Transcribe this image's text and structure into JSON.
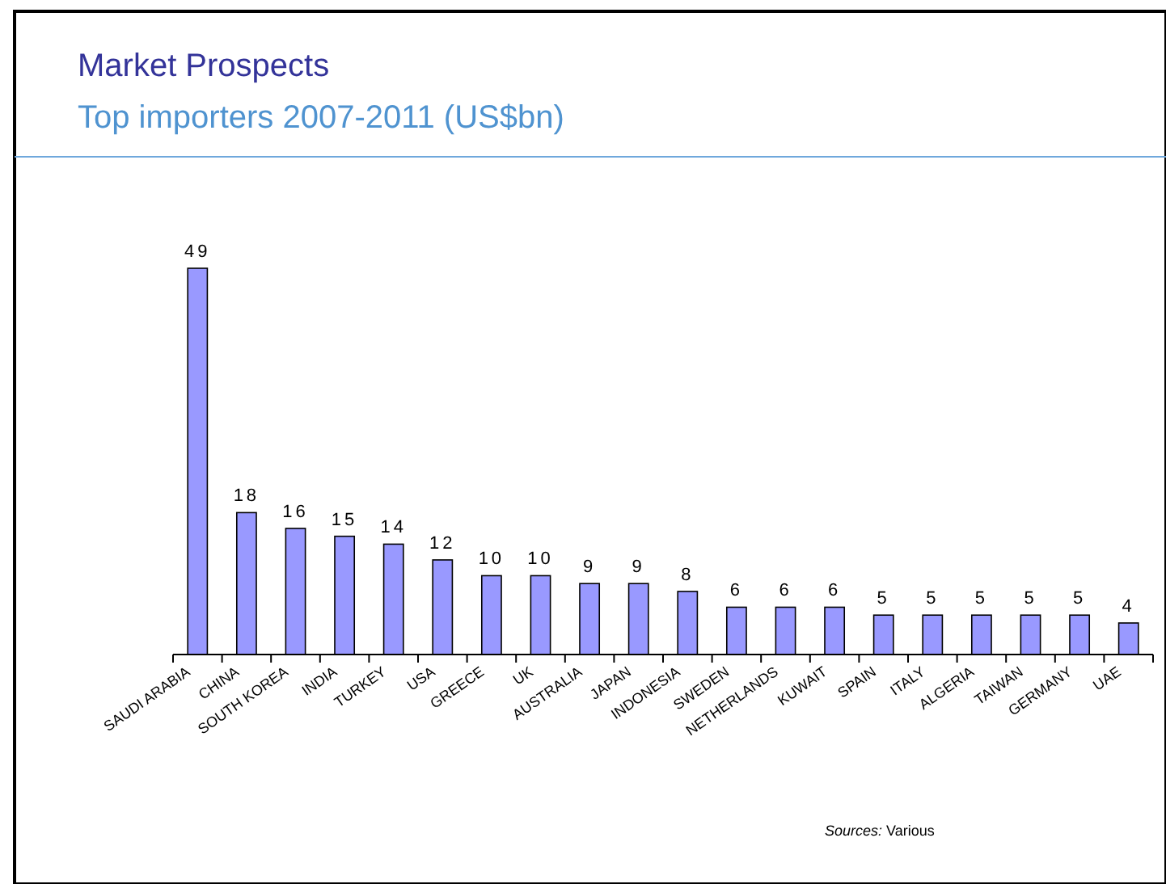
{
  "chart_data": {
    "type": "bar",
    "title": "Market Prospects",
    "subtitle": "Top importers 2007-2011 (US$bn)",
    "categories": [
      "SAUDI ARABIA",
      "CHINA",
      "SOUTH KOREA",
      "INDIA",
      "TURKEY",
      "USA",
      "GREECE",
      "UK",
      "AUSTRALIA",
      "JAPAN",
      "INDONESIA",
      "SWEDEN",
      "NETHERLANDS",
      "KUWAIT",
      "SPAIN",
      "ITALY",
      "ALGERIA",
      "TAIWAN",
      "GERMANY",
      "UAE"
    ],
    "values": [
      49,
      18,
      16,
      15,
      14,
      12,
      10,
      10,
      9,
      9,
      8,
      6,
      6,
      6,
      5,
      5,
      5,
      5,
      5,
      4
    ],
    "color": "#9999ff",
    "data_labels": true,
    "annotations": [
      "Sources: Various"
    ]
  }
}
